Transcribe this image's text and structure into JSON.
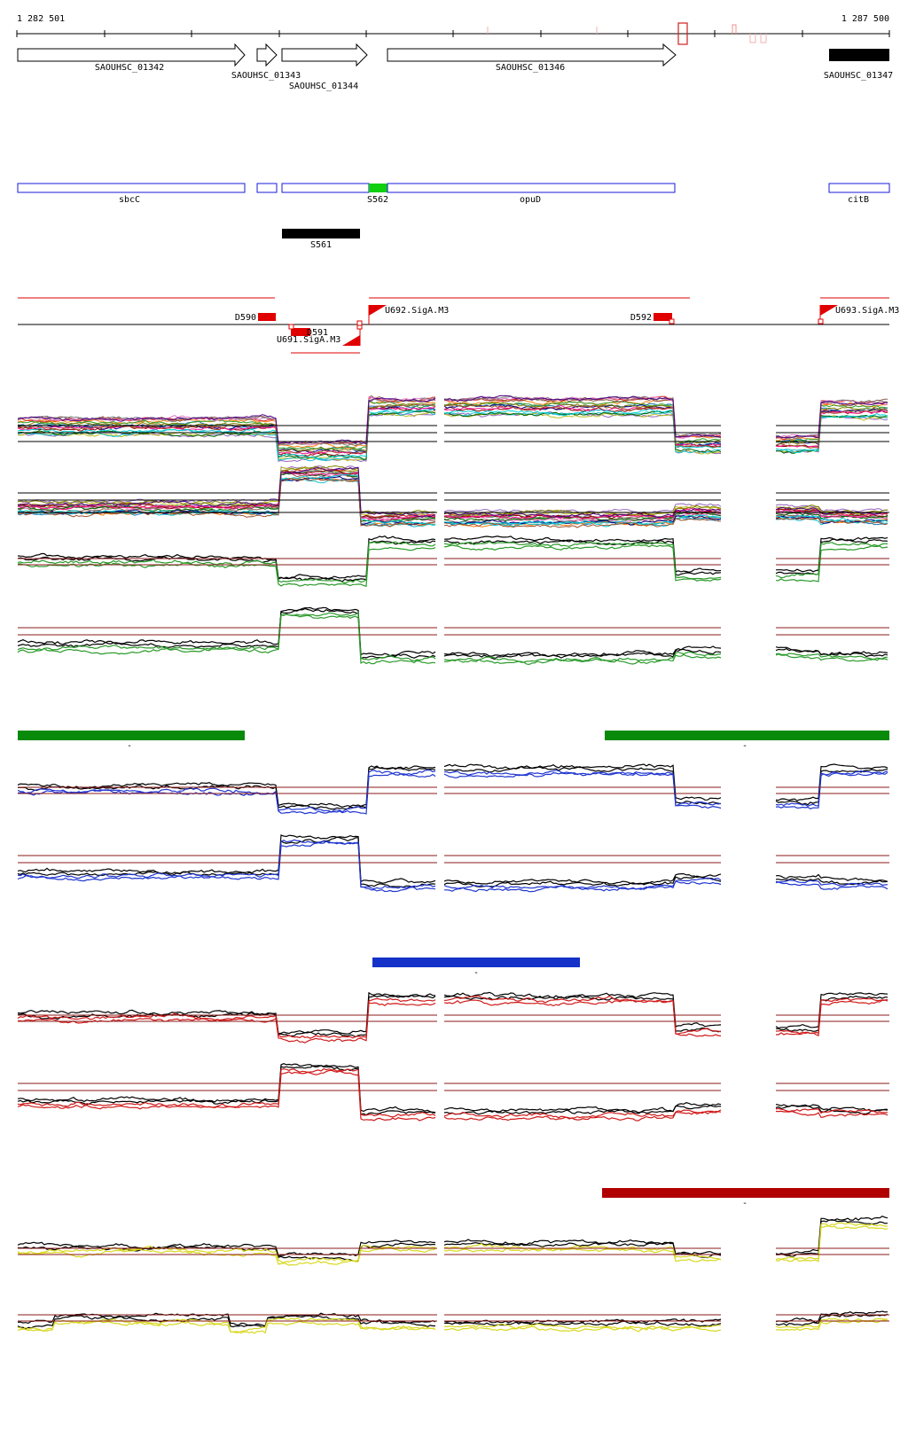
{
  "ruler": {
    "start_label": "1 282 501",
    "end_label": "1 287 500"
  },
  "genes": [
    {
      "label": "SAOUHSC_01342",
      "strand": "+",
      "style": "outline"
    },
    {
      "label": "SAOUHSC_01343",
      "strand": "+",
      "style": "outline"
    },
    {
      "label": "SAOUHSC_01344",
      "strand": "+",
      "style": "outline"
    },
    {
      "label": "SAOUHSC_01346",
      "strand": "+",
      "style": "outline"
    },
    {
      "label": "SAOUHSC_01347",
      "strand": "+",
      "style": "filled"
    }
  ],
  "annotations": [
    {
      "label": "sbcC",
      "color": "#1a1adb"
    },
    {
      "label": "",
      "color": "#1a1adb"
    },
    {
      "label": "S562",
      "color": "#1a1adb"
    },
    {
      "label": "opuD",
      "color": "#1a1adb"
    },
    {
      "label": "citB",
      "color": "#1a1adb"
    }
  ],
  "segments": [
    {
      "label": "S562",
      "color": "#10d010"
    },
    {
      "label": "S561",
      "color": "#000000"
    }
  ],
  "regulators": {
    "downregulated": [
      {
        "label": "D590"
      },
      {
        "label": "D591"
      },
      {
        "label": "D592"
      }
    ],
    "promoters": [
      {
        "label": "U691.SigA.M3"
      },
      {
        "label": "U692.SigA.M3"
      },
      {
        "label": "U693.SigA.M3"
      }
    ],
    "colors": {
      "promoter": "#e00000",
      "line": "#000000"
    }
  },
  "condition_bars": [
    {
      "label": "-",
      "color": "#0a8a0a"
    },
    {
      "label": "-",
      "color": "#0a8a0a"
    },
    {
      "label": "-",
      "color": "#1432c8"
    },
    {
      "label": "-",
      "color": "#b00000"
    }
  ],
  "expression_panels": {
    "threshold_color": "#8b1a1a",
    "multi_series_colors": [
      "#1f77b4",
      "#ff7f0e",
      "#2ca02c",
      "#d62728",
      "#9467bd",
      "#8c564b",
      "#e377c2",
      "#7f7f7f",
      "#bcbd22",
      "#17becf",
      "#8b0000",
      "#006400",
      "#000080",
      "#ff1493",
      "#808000",
      "#00ced1",
      "#a0522d",
      "#4b0082"
    ],
    "comparison_colors": [
      "#2a9a2a",
      "#2036d0",
      "#d01a1a",
      "#d8d820"
    ]
  }
}
